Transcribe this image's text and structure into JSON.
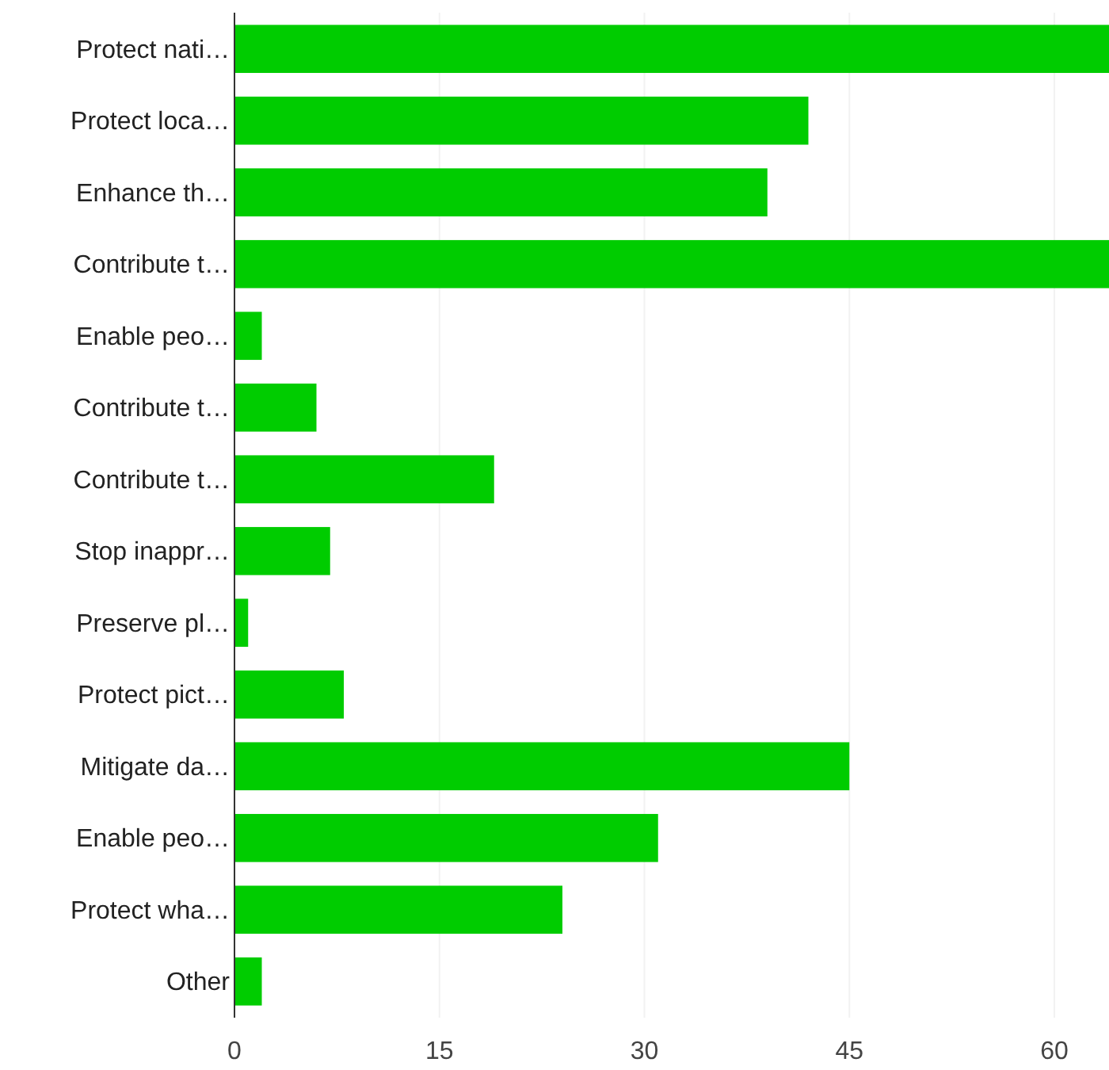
{
  "chart_data": {
    "type": "bar",
    "orientation": "horizontal",
    "categories": [
      "Protect nati…",
      "Protect loca…",
      "Enhance th…",
      "Contribute t…",
      "Enable peo…",
      "Contribute t…",
      "Contribute t…",
      "Stop inappr…",
      "Preserve pl…",
      "Protect pict…",
      "Mitigate da…",
      "Enable peo…",
      "Protect wha…",
      "Other"
    ],
    "values": [
      64,
      42,
      39,
      64,
      2,
      6,
      19,
      7,
      1,
      8,
      45,
      31,
      24,
      2
    ],
    "color": "#00cc00",
    "xlim": [
      0,
      64
    ],
    "xticks": [
      0,
      15,
      30,
      45,
      60
    ],
    "grid": "x"
  }
}
